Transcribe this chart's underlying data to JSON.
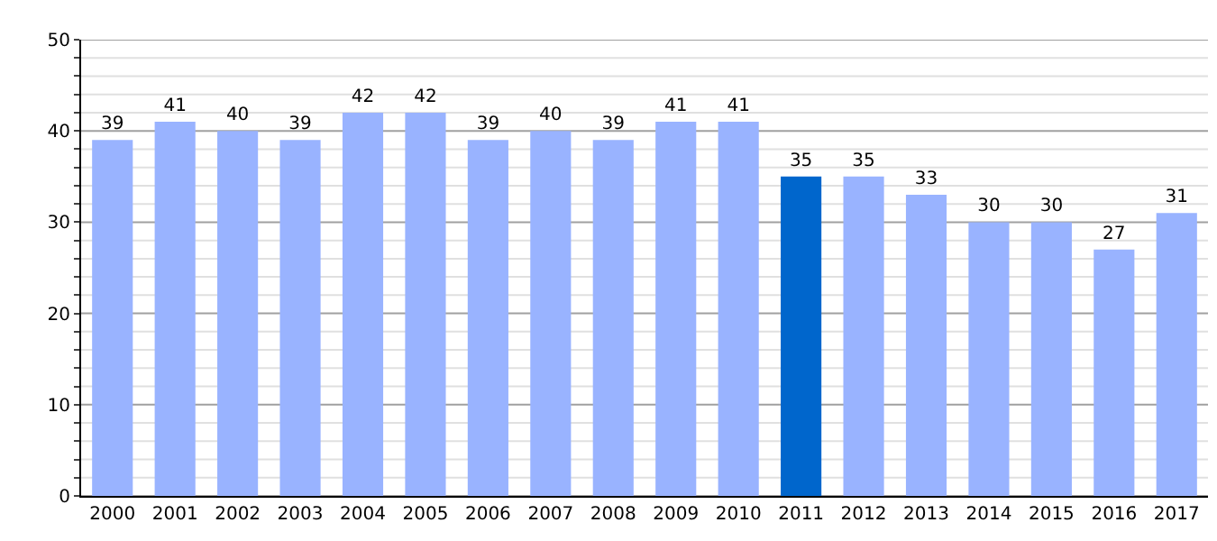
{
  "chart_data": {
    "type": "bar",
    "categories": [
      "2000",
      "2001",
      "2002",
      "2003",
      "2004",
      "2005",
      "2006",
      "2007",
      "2008",
      "2009",
      "2010",
      "2011",
      "2012",
      "2013",
      "2014",
      "2015",
      "2016",
      "2017"
    ],
    "values": [
      39,
      41,
      40,
      39,
      42,
      42,
      39,
      40,
      39,
      41,
      41,
      35,
      35,
      33,
      30,
      30,
      27,
      31
    ],
    "colors": [
      "#99b3ff",
      "#99b3ff",
      "#99b3ff",
      "#99b3ff",
      "#99b3ff",
      "#99b3ff",
      "#99b3ff",
      "#99b3ff",
      "#99b3ff",
      "#99b3ff",
      "#99b3ff",
      "#0066cc",
      "#99b3ff",
      "#99b3ff",
      "#99b3ff",
      "#99b3ff",
      "#99b3ff",
      "#99b3ff"
    ],
    "ylim": [
      0,
      50
    ],
    "yticks": [
      0,
      {
        "value": 2,
        "label": null
      },
      {
        "value": 4,
        "label": null
      },
      {
        "value": 6,
        "label": null
      },
      {
        "value": 8,
        "label": null
      },
      10,
      {
        "value": 12,
        "label": null
      },
      {
        "value": 14,
        "label": null
      },
      {
        "value": 16,
        "label": null
      },
      {
        "value": 18,
        "label": null
      },
      20,
      {
        "value": 22,
        "label": null
      },
      {
        "value": 24,
        "label": null
      },
      {
        "value": 26,
        "label": null
      },
      {
        "value": 28,
        "label": null
      },
      30,
      {
        "value": 32,
        "label": null
      },
      {
        "value": 34,
        "label": null
      },
      {
        "value": 36,
        "label": null
      },
      {
        "value": 38,
        "label": null
      },
      40,
      {
        "value": 42,
        "label": null
      },
      {
        "value": 44,
        "label": null
      },
      {
        "value": 46,
        "label": null
      },
      {
        "value": 48,
        "label": null
      },
      50
    ],
    "grid": "y",
    "data_labels": true
  }
}
